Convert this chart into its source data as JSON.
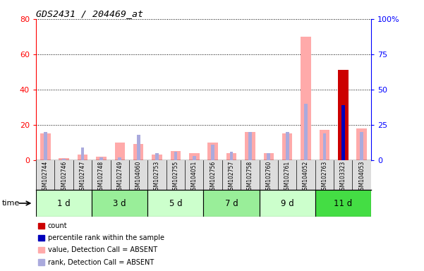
{
  "title": "GDS2431 / 204469_at",
  "samples": [
    "GSM102744",
    "GSM102746",
    "GSM102747",
    "GSM102748",
    "GSM102749",
    "GSM104060",
    "GSM102753",
    "GSM102755",
    "GSM104051",
    "GSM102756",
    "GSM102757",
    "GSM102758",
    "GSM102760",
    "GSM102761",
    "GSM104052",
    "GSM102763",
    "GSM103323",
    "GSM104053"
  ],
  "time_groups": [
    {
      "label": "1 d",
      "start": 0,
      "end": 3,
      "color": "#ccffcc"
    },
    {
      "label": "3 d",
      "start": 3,
      "end": 6,
      "color": "#99ee99"
    },
    {
      "label": "5 d",
      "start": 6,
      "end": 9,
      "color": "#ccffcc"
    },
    {
      "label": "7 d",
      "start": 9,
      "end": 12,
      "color": "#99ee99"
    },
    {
      "label": "9 d",
      "start": 12,
      "end": 15,
      "color": "#ccffcc"
    },
    {
      "label": "11 d",
      "start": 15,
      "end": 18,
      "color": "#44dd44"
    }
  ],
  "value_bars": [
    15,
    1,
    3,
    2,
    10,
    9,
    3,
    5,
    4,
    10,
    4,
    16,
    4,
    15,
    70,
    17,
    51,
    18
  ],
  "rank_bars_pct": [
    20,
    1,
    9,
    2,
    2,
    18,
    5,
    6,
    3,
    11,
    6,
    20,
    5,
    20,
    40,
    19,
    39,
    20
  ],
  "count_bar_index": 16,
  "count_value": 51,
  "percentile_index": 16,
  "percentile_value": 39,
  "value_bar_color": "#ffaaaa",
  "rank_bar_color": "#aaaadd",
  "count_bar_color": "#cc0000",
  "percentile_bar_color": "#0000bb",
  "left_ylim": [
    0,
    80
  ],
  "right_ylim": [
    0,
    100
  ],
  "left_yticks": [
    0,
    20,
    40,
    60,
    80
  ],
  "right_yticks": [
    0,
    25,
    50,
    75,
    100
  ],
  "right_yticklabels": [
    "0",
    "25",
    "50",
    "75",
    "100%"
  ],
  "bg_color": "#ffffff"
}
